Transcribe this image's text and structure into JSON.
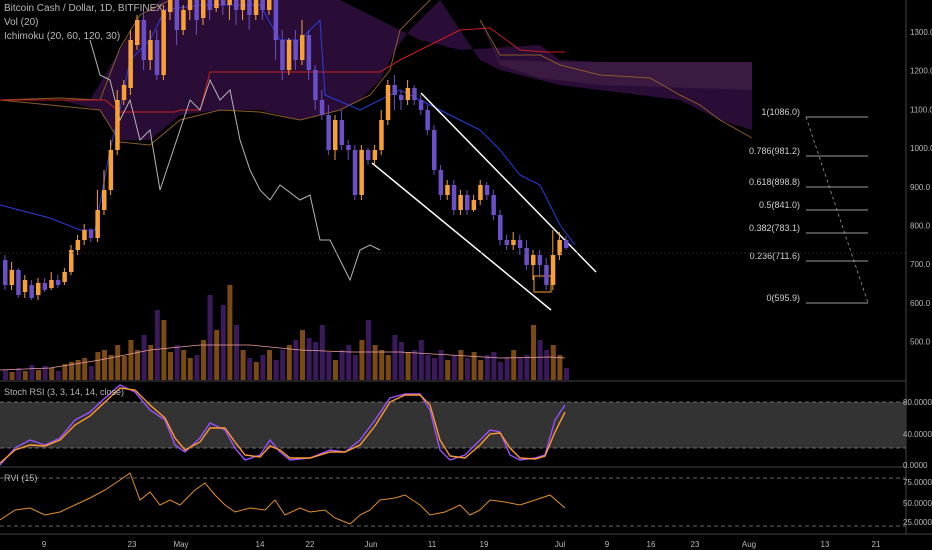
{
  "header": {
    "symbol_line": "Bitcoin Cash / Dollar, 1D, BITFINEX",
    "vol_line": "Vol (20)",
    "ichimoku_line": "Ichimoku (20, 60, 120, 30)"
  },
  "panes": {
    "stoch_label": "Stoch RSI (3, 3, 14, 14, close)",
    "rvi_label": "RVI (15)"
  },
  "price_axis": [
    "1300.0",
    "1200.0",
    "1100.0",
    "1000.0",
    "900.0",
    "800.0",
    "700.0",
    "600.0",
    "500.0"
  ],
  "stoch_axis": [
    "80.0000",
    "40.0000",
    "0.0000"
  ],
  "rvi_axis": [
    "75.0000",
    "50.0000",
    "25.0000"
  ],
  "time_axis": [
    "9",
    "23",
    "May",
    "14",
    "22",
    "Jun",
    "11",
    "19",
    "Jul",
    "9",
    "16",
    "23",
    "Aug",
    "13",
    "21"
  ],
  "fib_levels": [
    {
      "ratio": "1",
      "price": "1086.0",
      "label": "1(1086.0)"
    },
    {
      "ratio": "0.786",
      "price": "981.2",
      "label": "0.786(981.2)"
    },
    {
      "ratio": "0.618",
      "price": "898.8",
      "label": "0.618(898.8)"
    },
    {
      "ratio": "0.5",
      "price": "841.0",
      "label": "0.5(841.0)"
    },
    {
      "ratio": "0.382",
      "price": "783.1",
      "label": "0.382(783.1)"
    },
    {
      "ratio": "0.236",
      "price": "711.6",
      "label": "0.236(711.6)"
    },
    {
      "ratio": "0",
      "price": "595.9",
      "label": "0(595.9)"
    }
  ],
  "colors": {
    "bull": "#f7a035",
    "bear": "#6b4fc7",
    "cloud": "#2a0d36",
    "tenkan": "#2a3de0",
    "kijun": "#c8201f",
    "span": "#8a5b28",
    "chikou": "#b5b5b5",
    "channel": "#ffffff",
    "stoch_k": "#9a50ff",
    "stoch_d": "#ff9a30",
    "rvi": "#e0902f"
  }
}
